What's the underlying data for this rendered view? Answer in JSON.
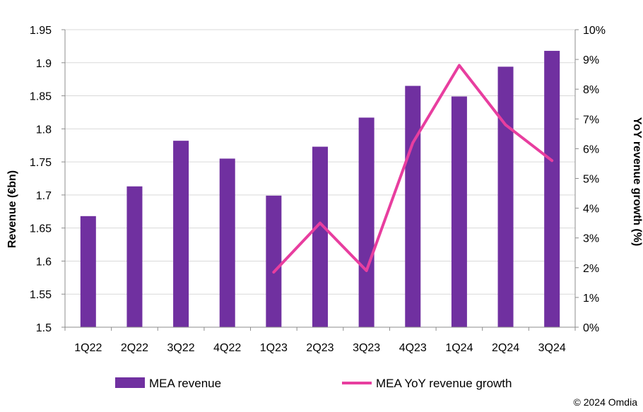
{
  "copyright": "© 2024 Omdia",
  "chart_data": {
    "type": "bar",
    "title": "",
    "categories": [
      "1Q22",
      "2Q22",
      "3Q22",
      "4Q22",
      "1Q23",
      "2Q23",
      "3Q23",
      "4Q23",
      "1Q24",
      "2Q24",
      "3Q24"
    ],
    "series": [
      {
        "name": "MEA revenue",
        "type": "bar",
        "axis": "left",
        "color": "#7030A0",
        "values": [
          1.668,
          1.713,
          1.782,
          1.755,
          1.699,
          1.773,
          1.817,
          1.865,
          1.849,
          1.894,
          1.918
        ]
      },
      {
        "name": "MEA YoY revenue growth",
        "type": "line",
        "axis": "right",
        "color": "#E83E9F",
        "values": [
          null,
          null,
          null,
          null,
          1.85,
          3.5,
          1.9,
          6.2,
          8.8,
          6.8,
          5.6
        ]
      }
    ],
    "ylabel": "Revenue (€bn)",
    "ylim": [
      1.5,
      1.95
    ],
    "yticks": [
      "1.5",
      "1.55",
      "1.6",
      "1.65",
      "1.7",
      "1.75",
      "1.8",
      "1.85",
      "1.9",
      "1.95"
    ],
    "y2label": "YoY revenue growth (%)",
    "y2lim": [
      0,
      10
    ],
    "y2ticks": [
      "0%",
      "1%",
      "2%",
      "3%",
      "4%",
      "5%",
      "6%",
      "7%",
      "8%",
      "9%",
      "10%"
    ],
    "grid": true,
    "legend": "bottom"
  }
}
